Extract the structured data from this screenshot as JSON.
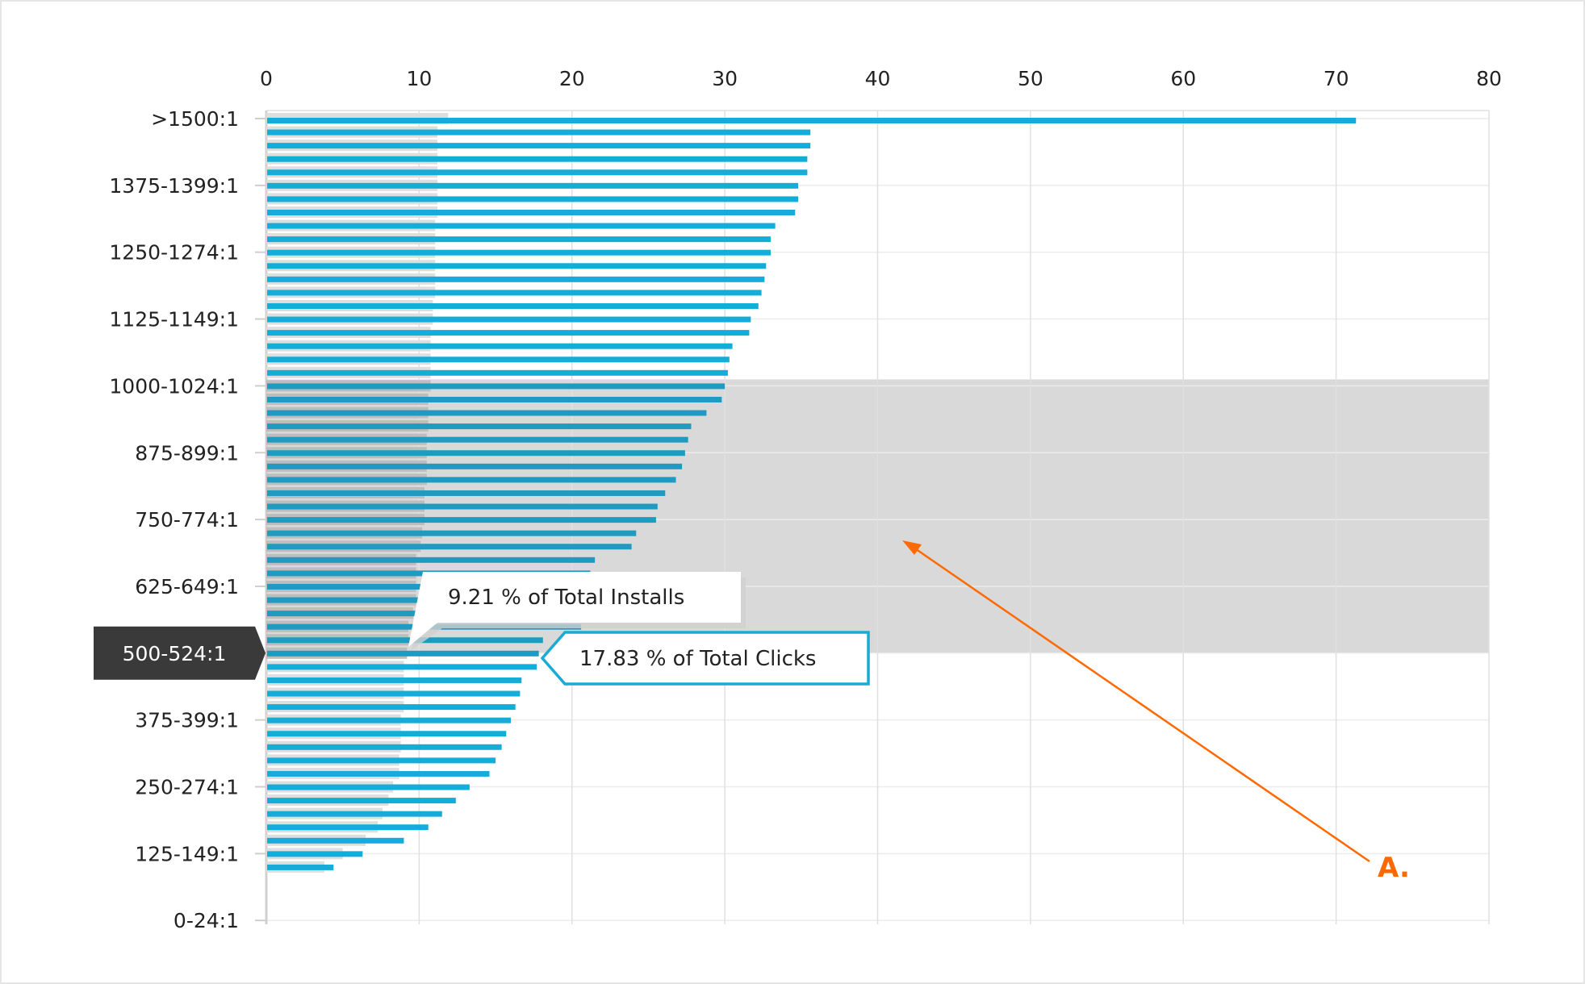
{
  "chart_data": {
    "type": "bar",
    "orientation": "horizontal",
    "title": "",
    "xlabel": "",
    "ylabel": "",
    "xlim": [
      0,
      80
    ],
    "x_ticks": [
      "0",
      "10",
      "20",
      "30",
      "40",
      "50",
      "60",
      "70",
      "80"
    ],
    "y_tick_labels": [
      ">1500:1",
      "1375-1399:1",
      "1250-1274:1",
      "1125-1149:1",
      "1000-1024:1",
      "875-899:1",
      "750-774:1",
      "625-649:1",
      "500-524:1",
      "375-399:1",
      "250-274:1",
      "125-149:1",
      "0-24:1"
    ],
    "label_every_n_rows": 5,
    "grid": true,
    "series": [
      {
        "name": "Total Clicks",
        "color": "#14acd8",
        "highlight_color": "#1f9ac0",
        "values": [
          71.3,
          35.6,
          35.6,
          35.4,
          35.4,
          34.8,
          34.8,
          34.6,
          33.3,
          33.0,
          33.0,
          32.7,
          32.6,
          32.4,
          32.2,
          31.7,
          31.6,
          30.5,
          30.3,
          30.2,
          30.0,
          29.8,
          28.8,
          27.8,
          27.6,
          27.4,
          27.2,
          26.8,
          26.1,
          25.6,
          25.5,
          24.2,
          23.9,
          21.5,
          21.2,
          21.0,
          20.9,
          20.7,
          20.6,
          18.1,
          17.83,
          17.7,
          16.7,
          16.6,
          16.3,
          16.0,
          15.7,
          15.4,
          15.0,
          14.6,
          13.3,
          12.4,
          11.5,
          10.6,
          9.0,
          6.3,
          4.4,
          0,
          0,
          0,
          0
        ]
      },
      {
        "name": "Total Installs",
        "color": "#dedede",
        "highlight_color": "#bdbdbd",
        "values": [
          11.9,
          11.2,
          11.2,
          11.2,
          11.2,
          11.2,
          11.2,
          11.2,
          11.05,
          11.05,
          11.05,
          11.05,
          11.05,
          11.05,
          10.9,
          10.9,
          10.75,
          10.75,
          10.75,
          10.75,
          10.75,
          10.6,
          10.6,
          10.6,
          10.5,
          10.5,
          10.5,
          10.5,
          10.35,
          10.35,
          10.35,
          10.2,
          10.1,
          9.8,
          9.8,
          9.8,
          9.8,
          9.6,
          9.3,
          9.3,
          9.21,
          9.0,
          9.0,
          9.0,
          9.0,
          8.8,
          8.8,
          8.8,
          8.7,
          8.7,
          8.3,
          8.0,
          7.6,
          7.3,
          6.5,
          5.0,
          3.8,
          0,
          0,
          0,
          0
        ]
      }
    ],
    "highlight_rows": [
      20,
      40
    ],
    "selected_row": 40,
    "selected_label": "500-524:1",
    "tooltips": {
      "installs": "9.21 % of Total Installs",
      "clicks": "17.83 % of Total Clicks"
    },
    "annotation": {
      "label": "A.",
      "color": "#ff6a00"
    }
  }
}
